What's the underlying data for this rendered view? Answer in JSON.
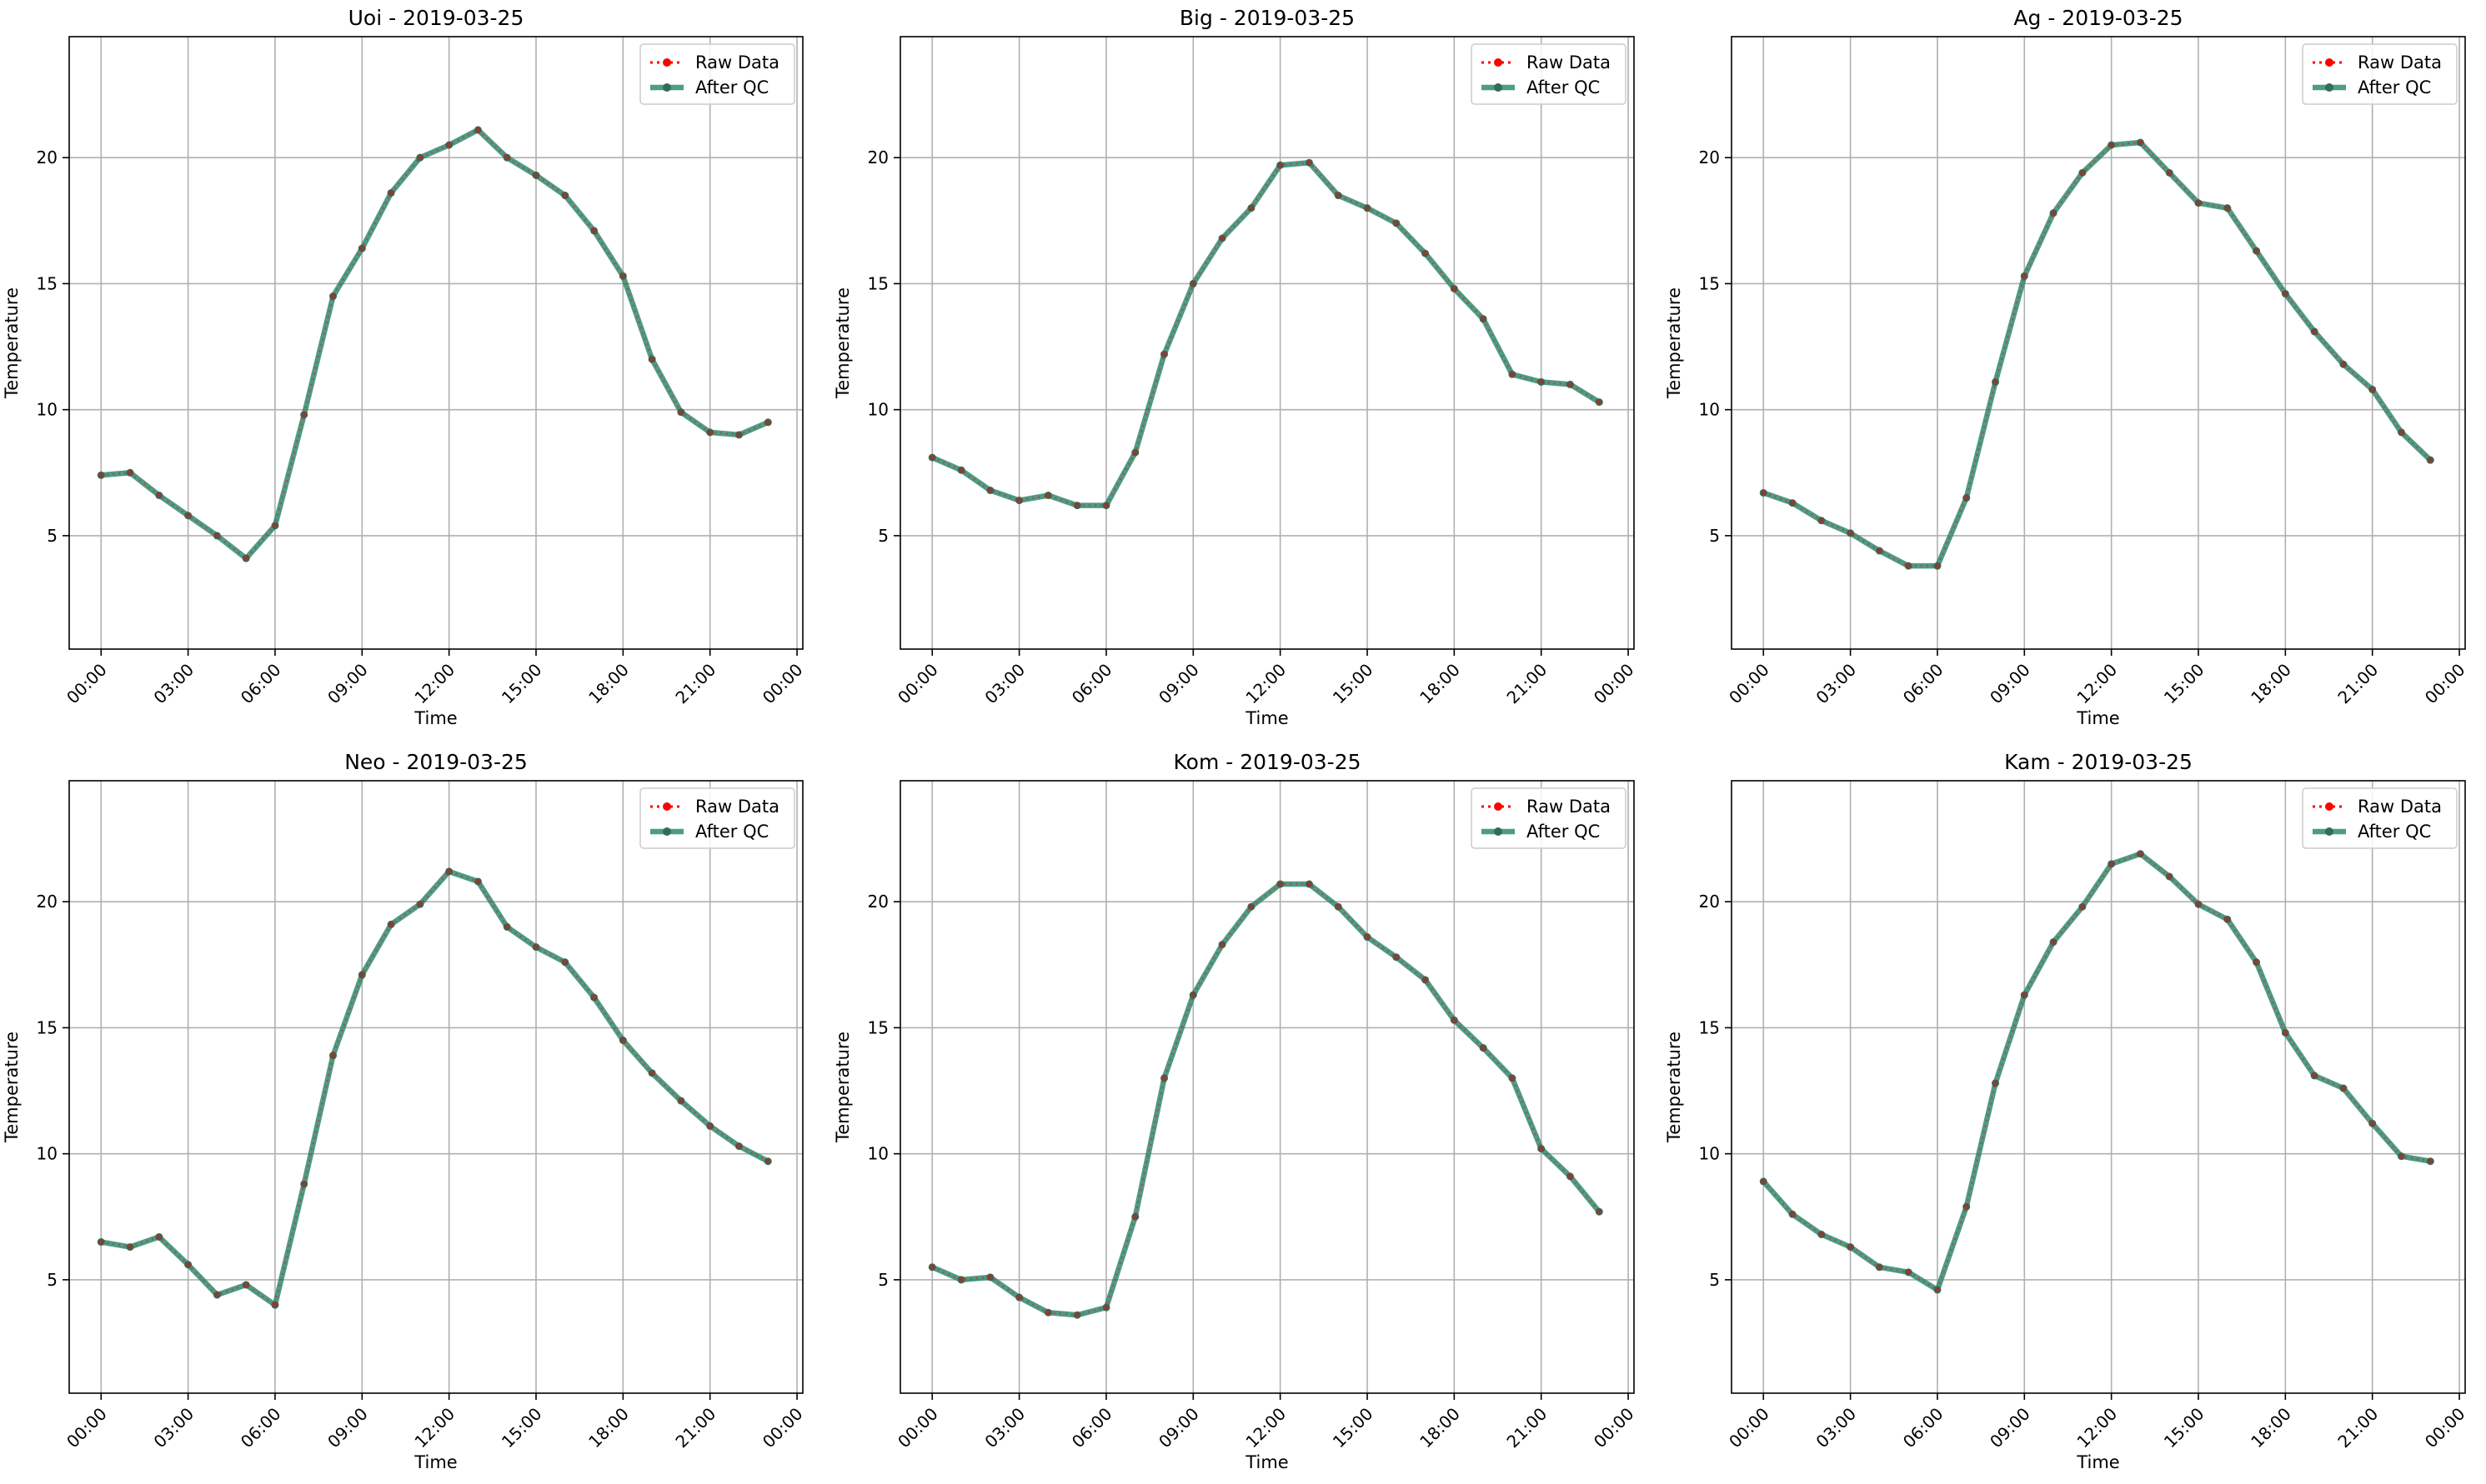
{
  "colors": {
    "raw": "#ff0000",
    "qc": "#2e8b6e",
    "qc_marker": "#2f6f5a",
    "grid": "#b0b0b0"
  },
  "legend_location": "top-right",
  "chart_data": [
    {
      "type": "line",
      "title": "Uoi - 2019-03-25",
      "xlabel": "Time",
      "ylabel": "Temperature",
      "ylim": [
        0.5,
        24.8
      ],
      "xlim_hours": [
        -1.1,
        24.2
      ],
      "yticks": [
        5,
        10,
        15,
        20
      ],
      "xticks": [
        "00:00",
        "03:00",
        "06:00",
        "09:00",
        "12:00",
        "15:00",
        "18:00",
        "21:00",
        "00:00"
      ],
      "grid": true,
      "x": [
        "00:00",
        "01:00",
        "02:00",
        "03:00",
        "04:00",
        "05:00",
        "06:00",
        "07:00",
        "08:00",
        "09:00",
        "10:00",
        "11:00",
        "12:00",
        "13:00",
        "14:00",
        "15:00",
        "16:00",
        "17:00",
        "18:00",
        "19:00",
        "20:00",
        "21:00",
        "22:00",
        "23:00"
      ],
      "series": [
        {
          "name": "Raw Data",
          "values": [
            7.4,
            7.5,
            6.6,
            5.8,
            5.0,
            4.1,
            5.4,
            9.8,
            14.5,
            16.4,
            18.6,
            20.0,
            20.5,
            21.1,
            20.0,
            19.3,
            18.5,
            17.1,
            15.3,
            12.0,
            9.9,
            9.1,
            9.0,
            9.5
          ]
        },
        {
          "name": "After QC",
          "values": [
            7.4,
            7.5,
            6.6,
            5.8,
            5.0,
            4.1,
            5.4,
            9.8,
            14.5,
            16.4,
            18.6,
            20.0,
            20.5,
            21.1,
            20.0,
            19.3,
            18.5,
            17.1,
            15.3,
            12.0,
            9.9,
            9.1,
            9.0,
            9.5
          ]
        }
      ]
    },
    {
      "type": "line",
      "title": "Big - 2019-03-25",
      "xlabel": "Time",
      "ylabel": "Temperature",
      "ylim": [
        0.5,
        24.8
      ],
      "xlim_hours": [
        -1.1,
        24.2
      ],
      "yticks": [
        5,
        10,
        15,
        20
      ],
      "xticks": [
        "00:00",
        "03:00",
        "06:00",
        "09:00",
        "12:00",
        "15:00",
        "18:00",
        "21:00",
        "00:00"
      ],
      "grid": true,
      "x": [
        "00:00",
        "01:00",
        "02:00",
        "03:00",
        "04:00",
        "05:00",
        "06:00",
        "07:00",
        "08:00",
        "09:00",
        "10:00",
        "11:00",
        "12:00",
        "13:00",
        "14:00",
        "15:00",
        "16:00",
        "17:00",
        "18:00",
        "19:00",
        "20:00",
        "21:00",
        "22:00",
        "23:00"
      ],
      "series": [
        {
          "name": "Raw Data",
          "values": [
            8.1,
            7.6,
            6.8,
            6.4,
            6.6,
            6.2,
            6.2,
            8.3,
            12.2,
            15.0,
            16.8,
            18.0,
            19.7,
            19.8,
            18.5,
            18.0,
            17.4,
            16.2,
            14.8,
            13.6,
            11.4,
            11.1,
            11.0,
            10.3
          ]
        },
        {
          "name": "After QC",
          "values": [
            8.1,
            7.6,
            6.8,
            6.4,
            6.6,
            6.2,
            6.2,
            8.3,
            12.2,
            15.0,
            16.8,
            18.0,
            19.7,
            19.8,
            18.5,
            18.0,
            17.4,
            16.2,
            14.8,
            13.6,
            11.4,
            11.1,
            11.0,
            10.3
          ]
        }
      ]
    },
    {
      "type": "line",
      "title": "Ag - 2019-03-25",
      "xlabel": "Time",
      "ylabel": "Temperature",
      "ylim": [
        0.5,
        24.8
      ],
      "xlim_hours": [
        -1.1,
        24.2
      ],
      "yticks": [
        5,
        10,
        15,
        20
      ],
      "xticks": [
        "00:00",
        "03:00",
        "06:00",
        "09:00",
        "12:00",
        "15:00",
        "18:00",
        "21:00",
        "00:00"
      ],
      "grid": true,
      "x": [
        "00:00",
        "01:00",
        "02:00",
        "03:00",
        "04:00",
        "05:00",
        "06:00",
        "07:00",
        "08:00",
        "09:00",
        "10:00",
        "11:00",
        "12:00",
        "13:00",
        "14:00",
        "15:00",
        "16:00",
        "17:00",
        "18:00",
        "19:00",
        "20:00",
        "21:00",
        "22:00",
        "23:00"
      ],
      "series": [
        {
          "name": "Raw Data",
          "values": [
            6.7,
            6.3,
            5.6,
            5.1,
            4.4,
            3.8,
            3.8,
            6.5,
            11.1,
            15.3,
            17.8,
            19.4,
            20.5,
            20.6,
            19.4,
            18.2,
            18.0,
            16.3,
            14.6,
            13.1,
            11.8,
            10.8,
            9.1,
            8.0
          ]
        },
        {
          "name": "After QC",
          "values": [
            6.7,
            6.3,
            5.6,
            5.1,
            4.4,
            3.8,
            3.8,
            6.5,
            11.1,
            15.3,
            17.8,
            19.4,
            20.5,
            20.6,
            19.4,
            18.2,
            18.0,
            16.3,
            14.6,
            13.1,
            11.8,
            10.8,
            9.1,
            8.0
          ]
        }
      ]
    },
    {
      "type": "line",
      "title": "Neo - 2019-03-25",
      "xlabel": "Time",
      "ylabel": "Temperature",
      "ylim": [
        0.5,
        24.8
      ],
      "xlim_hours": [
        -1.1,
        24.2
      ],
      "yticks": [
        5,
        10,
        15,
        20
      ],
      "xticks": [
        "00:00",
        "03:00",
        "06:00",
        "09:00",
        "12:00",
        "15:00",
        "18:00",
        "21:00",
        "00:00"
      ],
      "grid": true,
      "x": [
        "00:00",
        "01:00",
        "02:00",
        "03:00",
        "04:00",
        "05:00",
        "06:00",
        "07:00",
        "08:00",
        "09:00",
        "10:00",
        "11:00",
        "12:00",
        "13:00",
        "14:00",
        "15:00",
        "16:00",
        "17:00",
        "18:00",
        "19:00",
        "20:00",
        "21:00",
        "22:00",
        "23:00"
      ],
      "series": [
        {
          "name": "Raw Data",
          "values": [
            6.5,
            6.3,
            6.7,
            5.6,
            4.4,
            4.8,
            4.0,
            8.8,
            13.9,
            17.1,
            19.1,
            19.9,
            21.2,
            20.8,
            19.0,
            18.2,
            17.6,
            16.2,
            14.5,
            13.2,
            12.1,
            11.1,
            10.3,
            9.7
          ]
        },
        {
          "name": "After QC",
          "values": [
            6.5,
            6.3,
            6.7,
            5.6,
            4.4,
            4.8,
            4.0,
            8.8,
            13.9,
            17.1,
            19.1,
            19.9,
            21.2,
            20.8,
            19.0,
            18.2,
            17.6,
            16.2,
            14.5,
            13.2,
            12.1,
            11.1,
            10.3,
            9.7
          ]
        }
      ]
    },
    {
      "type": "line",
      "title": "Kom - 2019-03-25",
      "xlabel": "Time",
      "ylabel": "Temperature",
      "ylim": [
        0.5,
        24.8
      ],
      "xlim_hours": [
        -1.1,
        24.2
      ],
      "yticks": [
        5,
        10,
        15,
        20
      ],
      "xticks": [
        "00:00",
        "03:00",
        "06:00",
        "09:00",
        "12:00",
        "15:00",
        "18:00",
        "21:00",
        "00:00"
      ],
      "grid": true,
      "x": [
        "00:00",
        "01:00",
        "02:00",
        "03:00",
        "04:00",
        "05:00",
        "06:00",
        "07:00",
        "08:00",
        "09:00",
        "10:00",
        "11:00",
        "12:00",
        "13:00",
        "14:00",
        "15:00",
        "16:00",
        "17:00",
        "18:00",
        "19:00",
        "20:00",
        "21:00",
        "22:00",
        "23:00"
      ],
      "series": [
        {
          "name": "Raw Data",
          "values": [
            5.5,
            5.0,
            5.1,
            4.3,
            3.7,
            3.6,
            3.9,
            7.5,
            13.0,
            16.3,
            18.3,
            19.8,
            20.7,
            20.7,
            19.8,
            18.6,
            17.8,
            16.9,
            15.3,
            14.2,
            13.0,
            10.2,
            9.1,
            7.7
          ]
        },
        {
          "name": "After QC",
          "values": [
            5.5,
            5.0,
            5.1,
            4.3,
            3.7,
            3.6,
            3.9,
            7.5,
            13.0,
            16.3,
            18.3,
            19.8,
            20.7,
            20.7,
            19.8,
            18.6,
            17.8,
            16.9,
            15.3,
            14.2,
            13.0,
            10.2,
            9.1,
            7.7
          ]
        }
      ]
    },
    {
      "type": "line",
      "title": "Kam - 2019-03-25",
      "xlabel": "Time",
      "ylabel": "Temperature",
      "ylim": [
        0.5,
        24.8
      ],
      "xlim_hours": [
        -1.1,
        24.2
      ],
      "yticks": [
        5,
        10,
        15,
        20
      ],
      "xticks": [
        "00:00",
        "03:00",
        "06:00",
        "09:00",
        "12:00",
        "15:00",
        "18:00",
        "21:00",
        "00:00"
      ],
      "grid": true,
      "x": [
        "00:00",
        "01:00",
        "02:00",
        "03:00",
        "04:00",
        "05:00",
        "06:00",
        "07:00",
        "08:00",
        "09:00",
        "10:00",
        "11:00",
        "12:00",
        "13:00",
        "14:00",
        "15:00",
        "16:00",
        "17:00",
        "18:00",
        "19:00",
        "20:00",
        "21:00",
        "22:00",
        "23:00"
      ],
      "series": [
        {
          "name": "Raw Data",
          "values": [
            8.9,
            7.6,
            6.8,
            6.3,
            5.5,
            5.3,
            4.6,
            7.9,
            12.8,
            16.3,
            18.4,
            19.8,
            21.5,
            21.9,
            21.0,
            19.9,
            19.3,
            17.6,
            14.8,
            13.1,
            12.6,
            11.2,
            9.9,
            9.7
          ]
        },
        {
          "name": "After QC",
          "values": [
            8.9,
            7.6,
            6.8,
            6.3,
            5.5,
            5.3,
            4.6,
            7.9,
            12.8,
            16.3,
            18.4,
            19.8,
            21.5,
            21.9,
            21.0,
            19.9,
            19.3,
            17.6,
            14.8,
            13.1,
            12.6,
            11.2,
            9.9,
            9.7
          ]
        }
      ]
    }
  ]
}
